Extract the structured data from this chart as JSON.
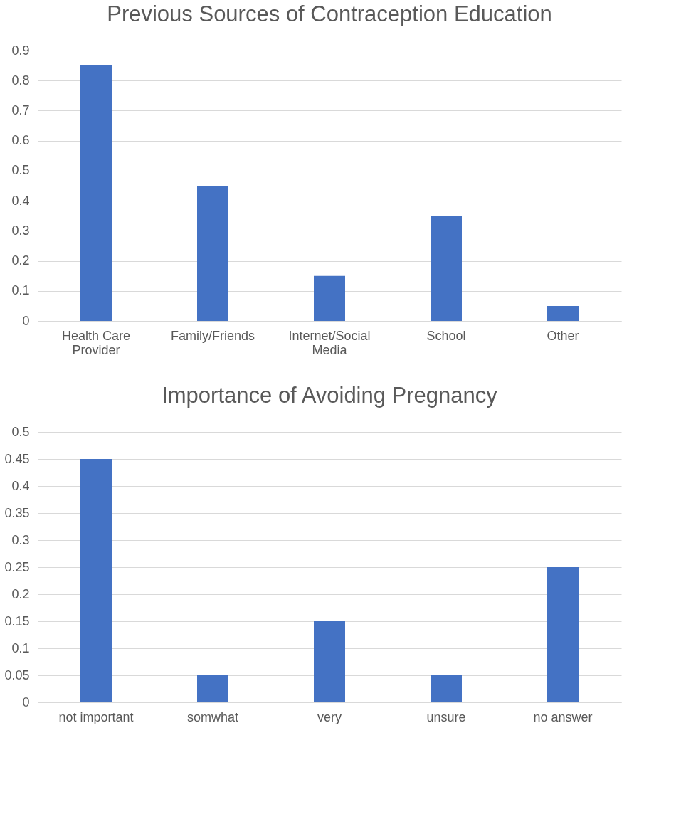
{
  "chart_data": [
    {
      "type": "bar",
      "title": "Previous Sources of Contraception Education",
      "categories": [
        "Health Care Provider",
        "Family/Friends",
        "Internet/Social Media",
        "School",
        "Other"
      ],
      "values": [
        0.85,
        0.45,
        0.15,
        0.35,
        0.05
      ],
      "color": "#4472c4",
      "ylim": [
        0,
        0.9
      ],
      "yticks": [
        0,
        0.1,
        0.2,
        0.3,
        0.4,
        0.5,
        0.6,
        0.7,
        0.8,
        0.9
      ],
      "grid": "y"
    },
    {
      "type": "bar",
      "title": "Importance of Avoiding Pregnancy",
      "categories": [
        "not important",
        "somwhat",
        "very",
        "unsure",
        "no answer"
      ],
      "values": [
        0.45,
        0.05,
        0.15,
        0.05,
        0.25
      ],
      "color": "#4472c4",
      "ylim": [
        0,
        0.5
      ],
      "yticks": [
        0,
        0.05,
        0.1,
        0.15,
        0.2,
        0.25,
        0.3,
        0.35,
        0.4,
        0.45,
        0.5
      ],
      "grid": "y"
    }
  ]
}
